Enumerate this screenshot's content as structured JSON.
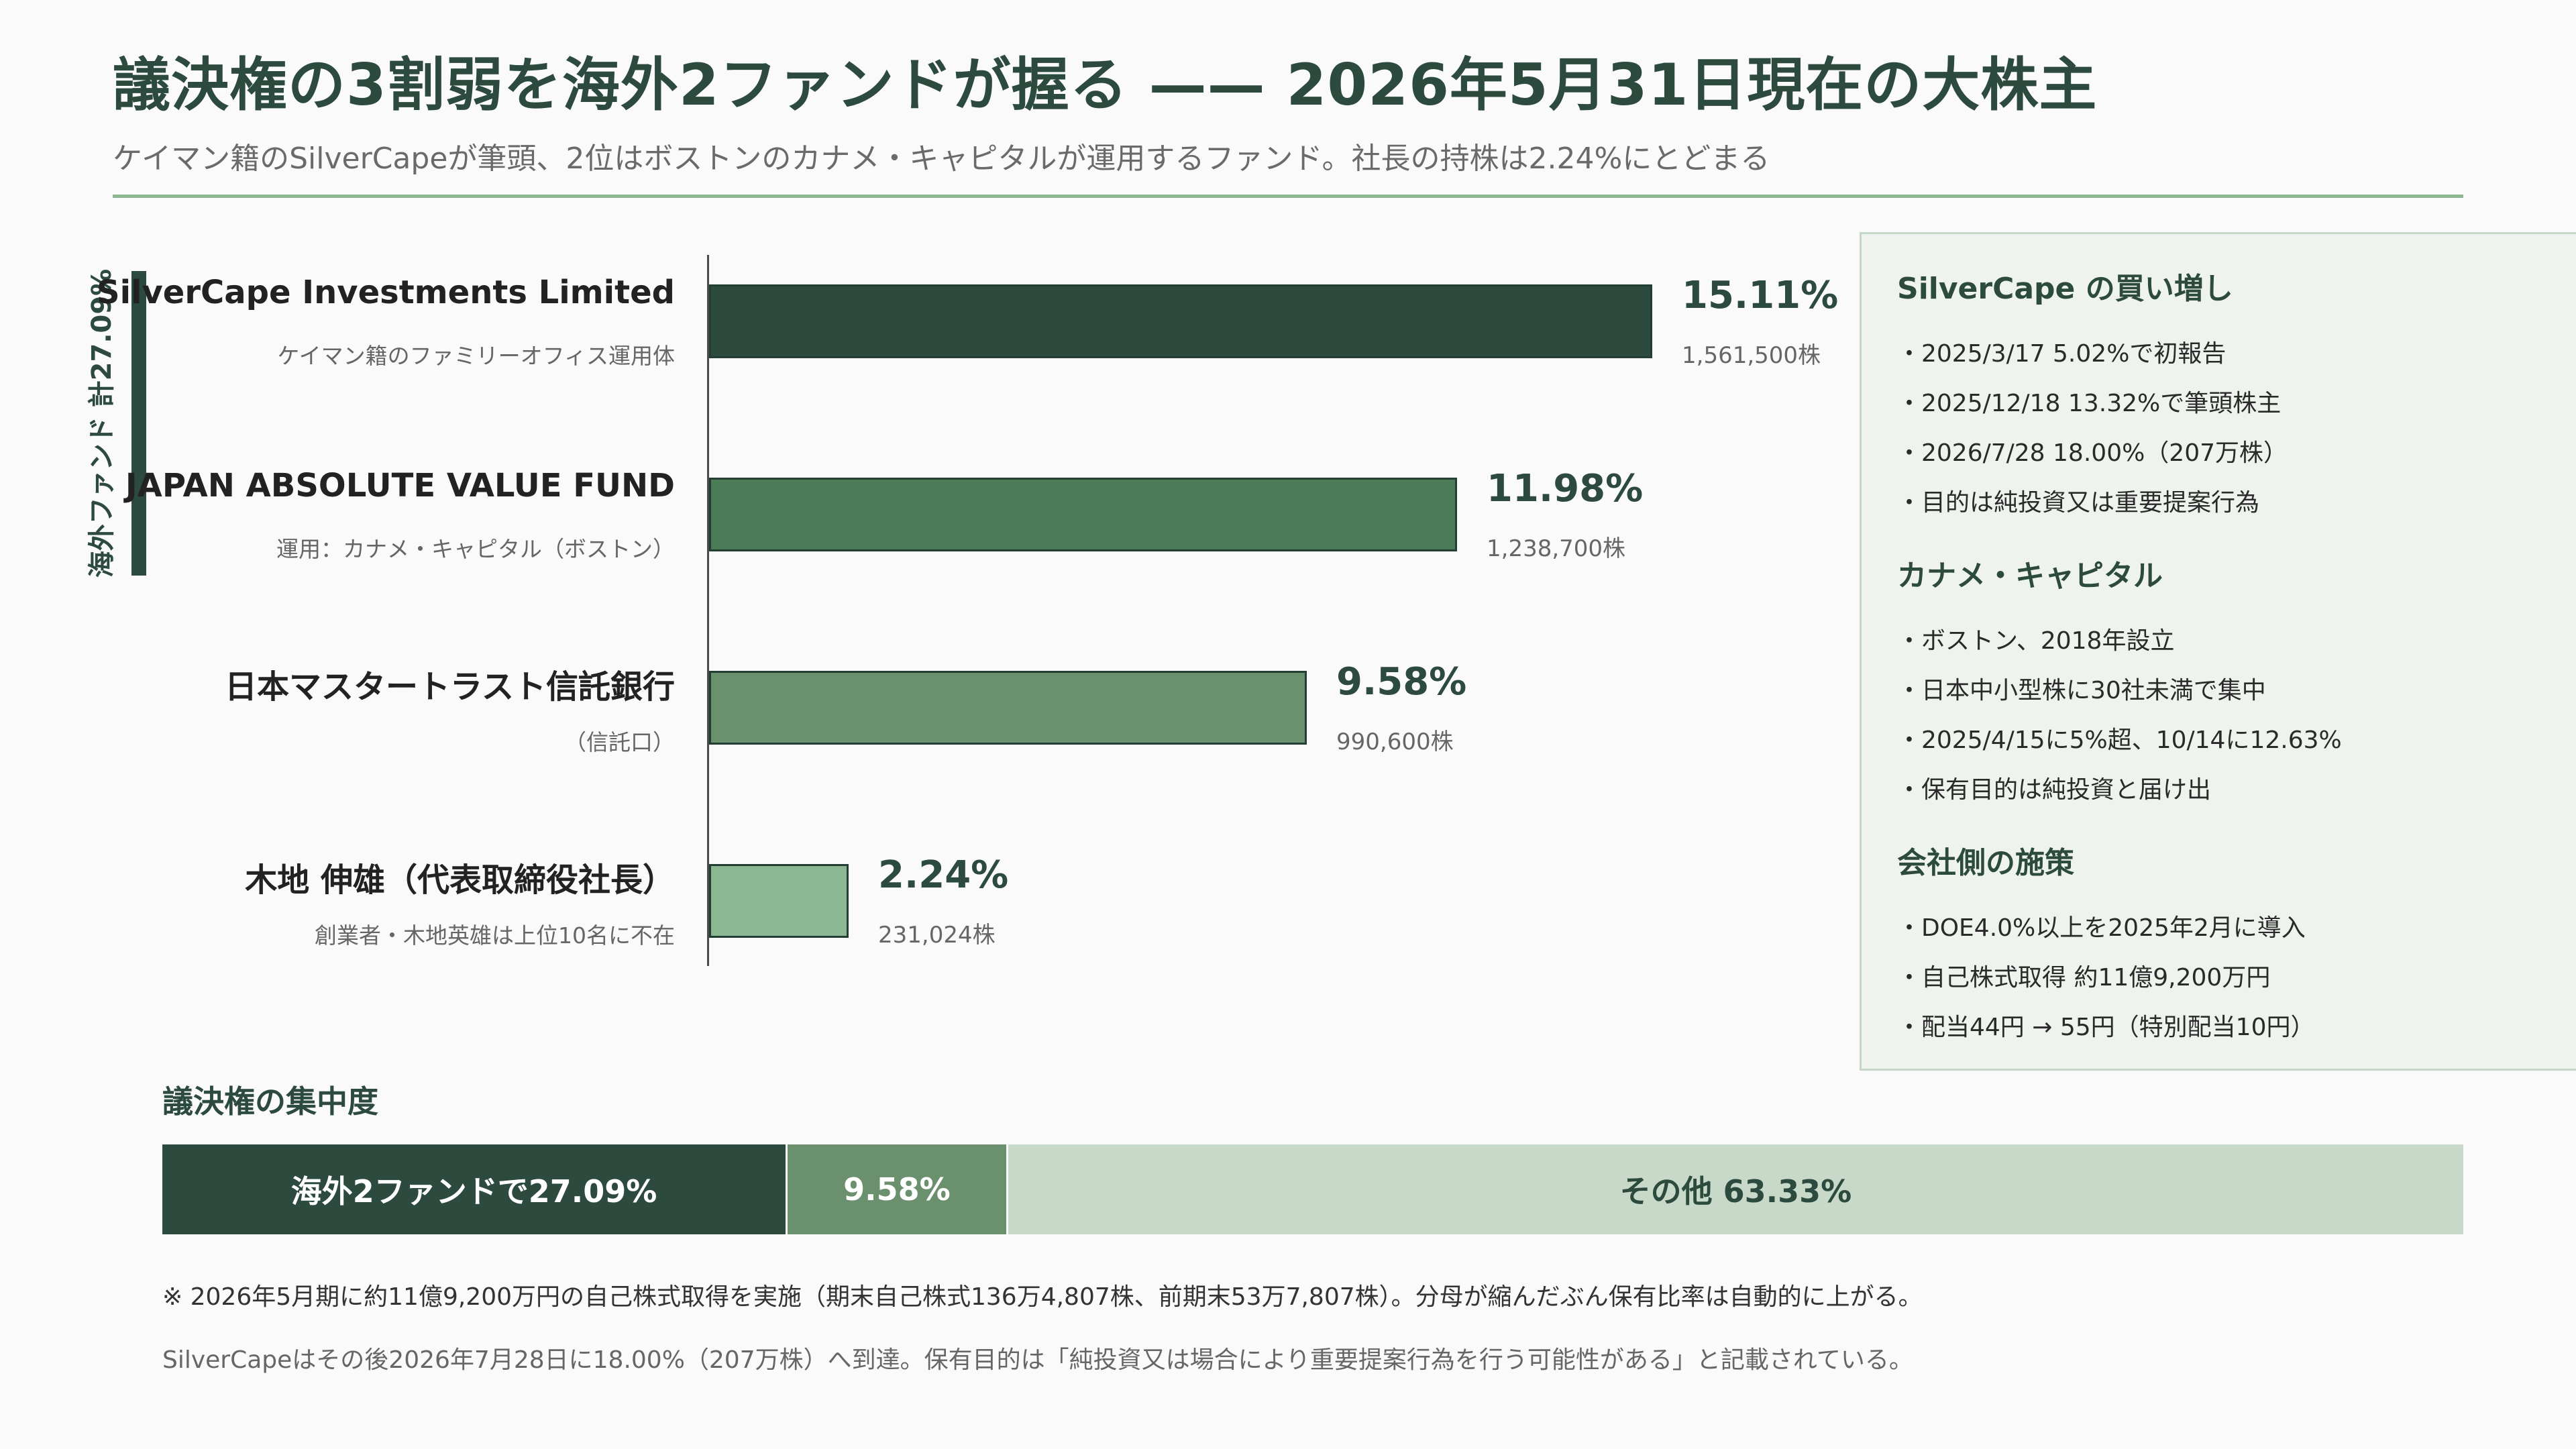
{
  "header": {
    "title": "議決権の3割弱を海外2ファンドが握る —— 2026年5月31日現在の大株主",
    "subtitle": "ケイマン籍のSilverCapeが筆頭、2位はボストンのカナメ・キャピタルが運用するファンド。社長の持株は2.24%にとどまる"
  },
  "chart_data": {
    "type": "bar",
    "orientation": "horizontal",
    "title": "",
    "xlabel": "",
    "ylabel": "",
    "xlim": [
      0,
      15.11
    ],
    "unit": "%",
    "group_bracket": {
      "label": "海外ファンド 計27.09%",
      "rows": [
        0,
        1
      ]
    },
    "categories": [
      "SilverCape Investments Limited",
      "JAPAN ABSOLUTE VALUE FUND",
      "日本マスタートラスト信託銀行",
      "木地 伸雄（代表取締役社長）"
    ],
    "category_notes": [
      "ケイマン籍のファミリーオフィス運用体",
      "運用：カナメ・キャピタル（ボストン）",
      "（信託口）",
      "創業者・木地英雄は上位10名に不在"
    ],
    "values": [
      15.11,
      11.98,
      9.58,
      2.24
    ],
    "value_labels": [
      "15.11%",
      "11.98%",
      "9.58%",
      "2.24%"
    ],
    "shares": [
      "1,561,500株",
      "1,238,700株",
      "990,600株",
      "231,024株"
    ],
    "colors": [
      "#2d4a3e",
      "#4b7b57",
      "#6b906e",
      "#8bb893"
    ]
  },
  "side_panel": {
    "sections": [
      {
        "heading": "SilverCape の買い増し",
        "items": [
          "・2025/3/17  5.02%で初報告",
          "・2025/12/18  13.32%で筆頭株主",
          "・2026/7/28  18.00%（207万株）",
          "・目的は純投資又は重要提案行為"
        ]
      },
      {
        "heading": "カナメ・キャピタル",
        "items": [
          "・ボストン、2018年設立",
          "・日本中小型株に30社未満で集中",
          "・2025/4/15に5%超、10/14に12.63%",
          "・保有目的は純投資と届け出"
        ]
      },
      {
        "heading": "会社側の施策",
        "items": [
          "・DOE4.0%以上を2025年2月に導入",
          "・自己株式取得 約11億9,200万円",
          "・配当44円 → 55円（特別配当10円）"
        ]
      }
    ]
  },
  "concentration": {
    "title": "議決権の集中度",
    "segments": [
      {
        "label": "海外2ファンドで27.09%",
        "value": 27.09,
        "color": "#2d4a3e",
        "text_color": "#ffffff"
      },
      {
        "label": "9.58%",
        "value": 9.58,
        "color": "#6b906e",
        "text_color": "#ffffff"
      },
      {
        "label": "その他 63.33%",
        "value": 63.33,
        "color": "#c8d9ca",
        "text_color": "#2d4a3e"
      }
    ]
  },
  "footnotes": [
    "※ 2026年5月期に約11億9,200万円の自己株式取得を実施（期末自己株式136万4,807株、前期末53万7,807株）。分母が縮んだぶん保有比率は自動的に上がる。",
    "SilverCapeはその後2026年7月28日に18.00%（207万株）へ到達。保有目的は「純投資又は場合により重要提案行為を行う可能性がある」と記載されている。"
  ]
}
